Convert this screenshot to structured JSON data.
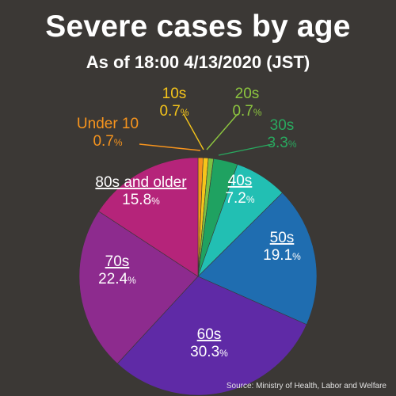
{
  "header": {
    "title": "Severe cases by age",
    "subtitle": "As of 18:00 4/13/2020 (JST)"
  },
  "footer": {
    "source": "Source: Ministry of Health, Labor and Welfare"
  },
  "chart_data": {
    "type": "pie",
    "title": "Severe cases by age",
    "subtitle": "As of 18:00 4/13/2020 (JST)",
    "start_angle_deg": 0,
    "direction": "clockwise",
    "slices": [
      {
        "label": "Under 10",
        "value": 0.7,
        "display": "0.7",
        "unit": "%",
        "color": "#f7941d",
        "text_color": "#f7941d",
        "underline": false
      },
      {
        "label": "10s",
        "value": 0.7,
        "display": "0.7",
        "unit": "%",
        "color": "#f6c51a",
        "text_color": "#f6c51a",
        "underline": false
      },
      {
        "label": "20s",
        "value": 0.7,
        "display": "0.7",
        "unit": "%",
        "color": "#7cc142",
        "text_color": "#8dc63f",
        "underline": false
      },
      {
        "label": "30s",
        "value": 3.3,
        "display": "3.3",
        "unit": "%",
        "color": "#1fa261",
        "text_color": "#29a95f",
        "underline": false
      },
      {
        "label": "40s",
        "value": 7.2,
        "display": "7.2",
        "unit": "%",
        "color": "#22bfb3",
        "text_color": "#ffffff",
        "underline": true
      },
      {
        "label": "50s",
        "value": 19.1,
        "display": "19.1",
        "unit": "%",
        "color": "#1f6db0",
        "text_color": "#ffffff",
        "underline": true
      },
      {
        "label": "60s",
        "value": 30.3,
        "display": "30.3",
        "unit": "%",
        "color": "#5f2aa6",
        "text_color": "#ffffff",
        "underline": true
      },
      {
        "label": "70s",
        "value": 22.4,
        "display": "22.4",
        "unit": "%",
        "color": "#8d2b8e",
        "text_color": "#ffffff",
        "underline": true
      },
      {
        "label": "80s and older",
        "value": 15.8,
        "display": "15.8",
        "unit": "%",
        "color": "#b5247a",
        "text_color": "#ffffff",
        "underline": true
      }
    ]
  }
}
